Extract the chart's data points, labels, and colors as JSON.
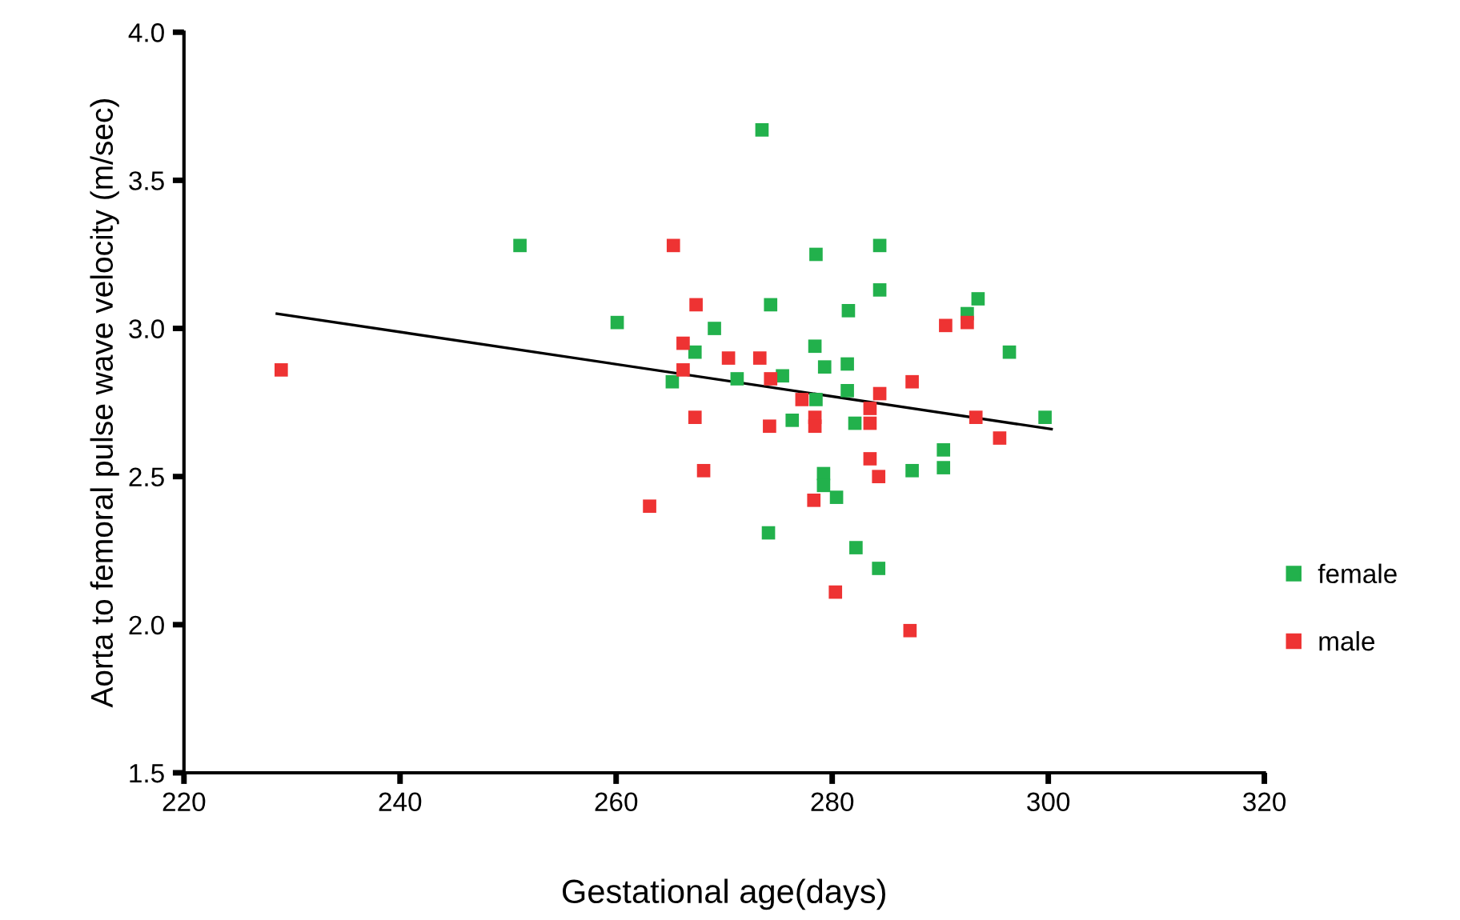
{
  "chart_data": {
    "type": "scatter",
    "xlabel": "Gestational age(days)",
    "ylabel": "Aorta to femoral pulse wave velocity (m/sec)",
    "xlim": [
      220,
      320
    ],
    "xticks": [
      220,
      240,
      260,
      280,
      300,
      320
    ],
    "ylim": [
      1.5,
      4.0
    ],
    "yticks": [
      {
        "value": 1.5,
        "label": "1.5"
      },
      {
        "value": 2.0,
        "label": "2.0"
      },
      {
        "value": 2.5,
        "label": "2.5"
      },
      {
        "value": 3.0,
        "label": "3.0"
      },
      {
        "value": 3.5,
        "label": "3.5"
      },
      {
        "value": 4.0,
        "label": "4.0"
      }
    ],
    "grid": false,
    "legend": "right",
    "marker": "square",
    "series": [
      {
        "name": "female",
        "color": "#22b14c",
        "x": [
          251.1,
          273.5,
          278.5,
          284.4,
          284.4,
          274.3,
          281.5,
          293.5,
          292.5,
          260.1,
          269.1,
          267.3,
          278.4,
          279.3,
          281.4,
          296.4,
          265.2,
          271.2,
          275.4,
          281.4,
          278.5,
          276.3,
          282.1,
          299.7,
          290.3,
          290.3,
          287.4,
          279.2,
          279.2,
          280.4,
          274.1,
          282.2,
          284.3
        ],
        "values": [
          3.28,
          3.67,
          3.25,
          3.28,
          3.13,
          3.08,
          3.06,
          3.1,
          3.05,
          3.02,
          3.0,
          2.92,
          2.94,
          2.87,
          2.88,
          2.92,
          2.82,
          2.83,
          2.84,
          2.79,
          2.76,
          2.69,
          2.68,
          2.7,
          2.59,
          2.53,
          2.52,
          2.51,
          2.47,
          2.43,
          2.31,
          2.26,
          2.19
        ]
      },
      {
        "name": "male",
        "color": "#ee3333",
        "x": [
          229.0,
          265.3,
          267.4,
          292.5,
          290.5,
          266.2,
          270.4,
          273.3,
          266.2,
          274.3,
          277.2,
          284.4,
          287.4,
          283.5,
          267.3,
          278.4,
          278.4,
          274.2,
          283.5,
          293.3,
          295.5,
          283.5,
          284.3,
          268.1,
          278.3,
          263.1,
          280.3,
          287.2
        ],
        "values": [
          2.86,
          3.28,
          3.08,
          3.02,
          3.01,
          2.95,
          2.9,
          2.9,
          2.86,
          2.83,
          2.76,
          2.78,
          2.82,
          2.73,
          2.7,
          2.7,
          2.67,
          2.67,
          2.68,
          2.7,
          2.63,
          2.56,
          2.5,
          2.52,
          2.42,
          2.4,
          2.11,
          1.98
        ]
      },
      {
        "type": "line",
        "color": "#000000",
        "marker": "none",
        "x": [
          228.6,
          300.3
        ],
        "values": [
          3.05,
          2.66
        ]
      }
    ]
  }
}
